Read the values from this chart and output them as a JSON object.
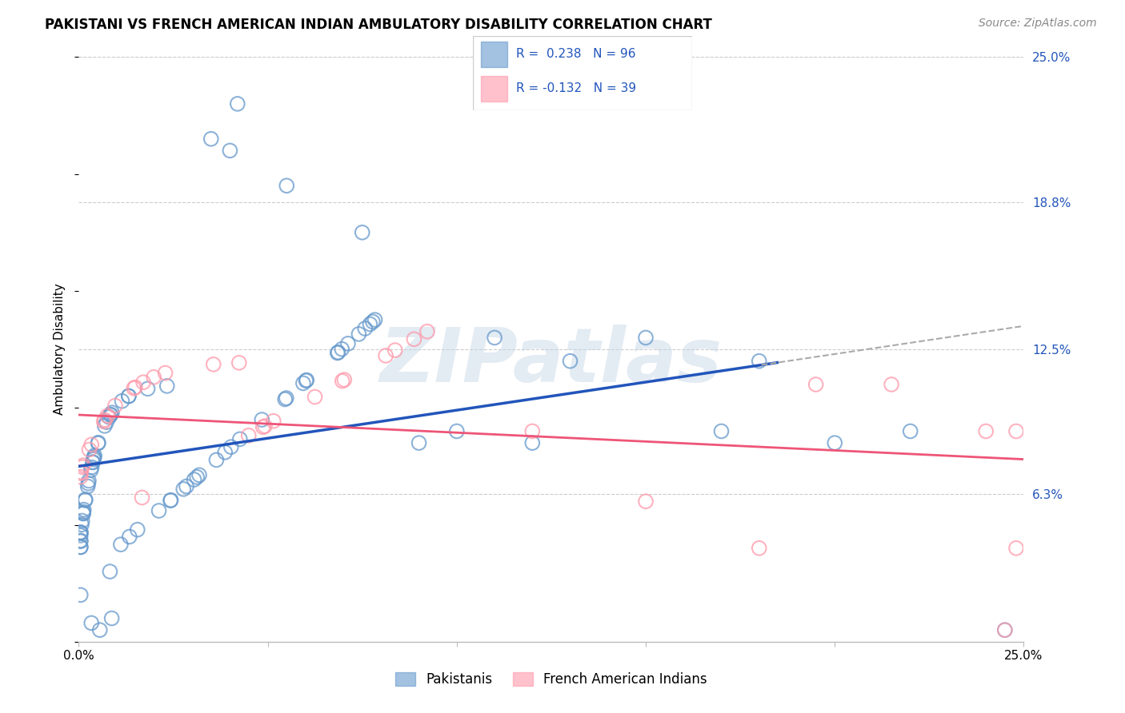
{
  "title": "PAKISTANI VS FRENCH AMERICAN INDIAN AMBULATORY DISABILITY CORRELATION CHART",
  "source": "Source: ZipAtlas.com",
  "ylabel": "Ambulatory Disability",
  "xlim": [
    0.0,
    0.25
  ],
  "ylim": [
    0.0,
    0.25
  ],
  "xtick_positions": [
    0.0,
    0.05,
    0.1,
    0.15,
    0.2,
    0.25
  ],
  "xtick_labels": [
    "0.0%",
    "",
    "",
    "",
    "",
    "25.0%"
  ],
  "ytick_vals_right": [
    0.063,
    0.125,
    0.188,
    0.25
  ],
  "ytick_labels_right": [
    "6.3%",
    "12.5%",
    "18.8%",
    "25.0%"
  ],
  "grid_color": "#cccccc",
  "background_color": "#ffffff",
  "blue_marker_color": "#6699cc",
  "pink_marker_color": "#ff99aa",
  "blue_line_color": "#2255bb",
  "pink_line_color": "#ee5577",
  "R_blue": 0.238,
  "N_blue": 96,
  "R_pink": -0.132,
  "N_pink": 39,
  "legend_label_blue": "Pakistanis",
  "legend_label_pink": "French American Indians",
  "watermark_text": "ZIPatlas",
  "title_fontsize": 12,
  "axis_label_fontsize": 11,
  "tick_fontsize": 11,
  "legend_fontsize": 11,
  "source_fontsize": 10,
  "blue_line_intercept": 0.075,
  "blue_line_slope": 0.22,
  "pink_line_intercept": 0.096,
  "pink_line_slope": -0.06
}
